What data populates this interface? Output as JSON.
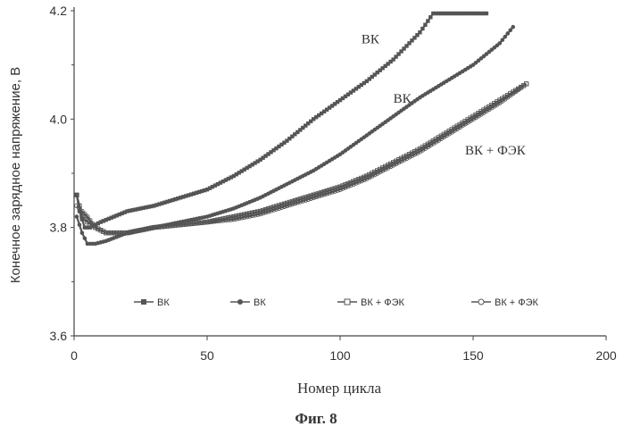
{
  "chart_data": {
    "type": "line",
    "xlabel": "Номер цикла",
    "ylabel": "Конечное зарядное напряжение, В",
    "caption": "Фиг. 8",
    "xlim": [
      0,
      200
    ],
    "ylim": [
      3.6,
      4.2
    ],
    "xticks": [
      "0",
      "50",
      "100",
      "150",
      "200"
    ],
    "yticks": [
      "3.6",
      "3.8",
      "4.0",
      "4.2"
    ],
    "legend_position": "bottom-inside",
    "annotations": [
      {
        "text": "ВК",
        "x": 108,
        "y": 4.14
      },
      {
        "text": "ВК",
        "x": 120,
        "y": 4.03
      },
      {
        "text": "ВК + ФЭК",
        "x": 147,
        "y": 3.935
      }
    ],
    "series": [
      {
        "name": "ВК",
        "marker": "square",
        "color": "#555555",
        "x": [
          1,
          2,
          4,
          6,
          10,
          15,
          20,
          30,
          40,
          50,
          60,
          70,
          80,
          90,
          100,
          110,
          120,
          130,
          135,
          140,
          145,
          150,
          155
        ],
        "y": [
          3.86,
          3.83,
          3.8,
          3.8,
          3.81,
          3.82,
          3.83,
          3.84,
          3.855,
          3.87,
          3.895,
          3.925,
          3.96,
          4.0,
          4.035,
          4.07,
          4.11,
          4.16,
          4.195,
          4.195,
          4.195,
          4.195,
          4.195
        ]
      },
      {
        "name": "ВК",
        "marker": "circle-filled",
        "color": "#555555",
        "x": [
          1,
          3,
          5,
          8,
          12,
          20,
          30,
          40,
          50,
          60,
          70,
          80,
          90,
          100,
          110,
          120,
          130,
          140,
          150,
          160,
          165
        ],
        "y": [
          3.82,
          3.79,
          3.77,
          3.77,
          3.775,
          3.79,
          3.8,
          3.81,
          3.82,
          3.835,
          3.855,
          3.88,
          3.905,
          3.935,
          3.97,
          4.005,
          4.04,
          4.07,
          4.1,
          4.14,
          4.17
        ]
      },
      {
        "name": "ВК + ФЭК",
        "marker": "square-open",
        "color": "#555555",
        "x": [
          1,
          2,
          3,
          5,
          8,
          12,
          20,
          30,
          40,
          50,
          60,
          70,
          80,
          90,
          100,
          110,
          120,
          130,
          140,
          150,
          160,
          170
        ],
        "y": [
          3.86,
          3.84,
          3.82,
          3.81,
          3.8,
          3.79,
          3.79,
          3.8,
          3.805,
          3.81,
          3.82,
          3.83,
          3.845,
          3.86,
          3.875,
          3.895,
          3.92,
          3.945,
          3.975,
          4.005,
          4.035,
          4.065
        ]
      },
      {
        "name": "ВК + ФЭК",
        "marker": "circle-open",
        "color": "#555555",
        "x": [
          1,
          3,
          5,
          8,
          12,
          20,
          30,
          40,
          50,
          60,
          70,
          80,
          90,
          100,
          110,
          120,
          130,
          140,
          150,
          160,
          170
        ],
        "y": [
          3.84,
          3.83,
          3.82,
          3.8,
          3.79,
          3.79,
          3.8,
          3.805,
          3.81,
          3.815,
          3.825,
          3.84,
          3.855,
          3.87,
          3.89,
          3.915,
          3.94,
          3.97,
          4.0,
          4.03,
          4.065
        ]
      }
    ]
  }
}
